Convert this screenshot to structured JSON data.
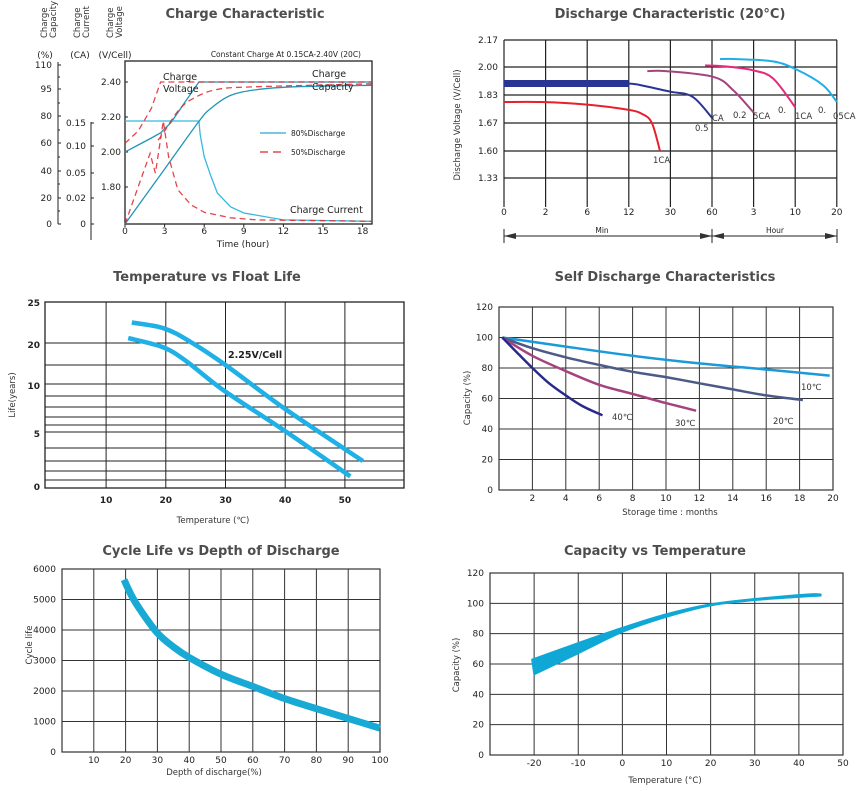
{
  "chart_data": [
    {
      "type": "line",
      "title": "Charge Characteristic",
      "note": "Constant Charge At 0.15CA-2.40V  (20C)",
      "xlabel": "Time (hour)",
      "xlim": [
        0,
        18.7
      ],
      "x_ticks": [
        "0",
        "3",
        "6",
        "9",
        "12",
        "15",
        "18"
      ],
      "axes": {
        "capacity": {
          "header": [
            "Charge",
            "Capacity"
          ],
          "unit": "(%)",
          "ticks": [
            "110",
            "95",
            "80",
            "60",
            "40",
            "20",
            "0"
          ]
        },
        "current": {
          "header": [
            "Charge",
            "Current"
          ],
          "unit": "(CA)",
          "ticks": [
            "0.15",
            "0.10",
            "0.05",
            "0.02",
            "0"
          ]
        },
        "voltage": {
          "header": [
            "Charge",
            "Voltage"
          ],
          "unit": "(V/Cell)",
          "ticks": [
            "2.40",
            "2.20",
            "2.00",
            "1.80"
          ],
          "tick_values": [
            2.4,
            2.2,
            2.0,
            1.8
          ]
        }
      },
      "annotations": {
        "voltage": [
          "Charge",
          "Voltage"
        ],
        "capacity": [
          "Charge",
          "Capacity"
        ],
        "current": "Charge Current"
      },
      "legend": [
        {
          "name": "80%Discharge",
          "style": "solid",
          "color": "#2aa8cf"
        },
        {
          "name": "50%Discharge",
          "style": "dashed",
          "color": "#e2242c"
        }
      ],
      "legend_position": "center-right",
      "series": [
        {
          "group": "80%Discharge",
          "quantity": "voltage",
          "unit": "V/Cell",
          "points": [
            [
              0,
              2.0
            ],
            [
              1,
              2.04
            ],
            [
              2,
              2.08
            ],
            [
              2.7,
              2.11
            ],
            [
              3.5,
              2.17
            ],
            [
              4.5,
              2.28
            ],
            [
              5.6,
              2.4
            ],
            [
              18.7,
              2.4
            ]
          ]
        },
        {
          "group": "80%Discharge",
          "quantity": "current",
          "unit": "CA",
          "points": [
            [
              0,
              0.15
            ],
            [
              5.6,
              0.15
            ],
            [
              5.7,
              0.13
            ],
            [
              6,
              0.098
            ],
            [
              6.5,
              0.07
            ],
            [
              7,
              0.045
            ],
            [
              8,
              0.025
            ],
            [
              9,
              0.016
            ],
            [
              12,
              0.006
            ],
            [
              18.7,
              0.004
            ]
          ]
        },
        {
          "group": "80%Discharge",
          "quantity": "capacity",
          "unit": "%",
          "points": [
            [
              0,
              0
            ],
            [
              3,
              38
            ],
            [
              5.6,
              71
            ],
            [
              6.5,
              80
            ],
            [
              8,
              89
            ],
            [
              10,
              93
            ],
            [
              13,
              95
            ],
            [
              18.7,
              96
            ]
          ]
        },
        {
          "group": "50%Discharge",
          "quantity": "voltage",
          "unit": "V/Cell",
          "points": [
            [
              0,
              2.05
            ],
            [
              1,
              2.12
            ],
            [
              2,
              2.25
            ],
            [
              2.7,
              2.4
            ],
            [
              18.7,
              2.4
            ]
          ]
        },
        {
          "group": "50%Discharge",
          "quantity": "current",
          "unit": "CA",
          "points": [
            [
              0,
              0
            ],
            [
              1.9,
              0.103
            ],
            [
              2.3,
              0.074
            ],
            [
              2.9,
              0.15
            ],
            [
              3.3,
              0.098
            ],
            [
              4,
              0.05
            ],
            [
              5,
              0.028
            ],
            [
              6,
              0.017
            ],
            [
              8,
              0.009
            ],
            [
              10,
              0.006
            ],
            [
              18.7,
              0.004
            ]
          ]
        },
        {
          "group": "50%Discharge",
          "quantity": "capacity",
          "unit": "%",
          "points": [
            [
              2.5,
              58
            ],
            [
              2.9,
              63
            ],
            [
              4,
              78
            ],
            [
              5,
              86
            ],
            [
              6.9,
              93
            ],
            [
              10,
              95
            ],
            [
              18.7,
              97
            ]
          ]
        }
      ]
    },
    {
      "type": "line",
      "title": "Discharge Characteristic (20°C)",
      "ylabel": "Discharge Voltage (V/Cell)",
      "x_ticks": [
        "0",
        "2",
        "6",
        "12",
        "30",
        "60",
        "3",
        "10",
        "20"
      ],
      "x_tick_minutes": [
        0,
        2,
        6,
        12,
        30,
        60,
        180,
        600,
        1200
      ],
      "y_ticks": [
        "2.17",
        "2.00",
        "1.83",
        "1.67",
        "1.60",
        "1.33"
      ],
      "y_tick_values": [
        2.17,
        2.0,
        1.83,
        1.67,
        1.6,
        1.33
      ],
      "x_units": [
        "Min",
        "Hour"
      ],
      "grid": true,
      "series": [
        {
          "color": "#e8202a",
          "points": [
            [
              0,
              1.79
            ],
            [
              1.8,
              1.79
            ],
            [
              6,
              1.775
            ],
            [
              12,
              1.745
            ],
            [
              18,
              1.72
            ],
            [
              22,
              1.67
            ],
            [
              25.5,
              1.6
            ]
          ]
        },
        {
          "color": "#283593",
          "thick_until": 12,
          "points": [
            [
              0,
              1.9
            ],
            [
              12,
              1.9
            ],
            [
              17,
              1.89
            ],
            [
              30,
              1.85
            ],
            [
              46,
              1.82
            ],
            [
              60,
              1.7
            ]
          ]
        },
        {
          "color": "#a4447f",
          "points": [
            [
              20,
              1.975
            ],
            [
              28,
              1.975
            ],
            [
              64,
              1.94
            ],
            [
              121,
              1.86
            ],
            [
              180,
              1.73
            ]
          ]
        },
        {
          "color": "#e8287c",
          "points": [
            [
              55,
              2.01
            ],
            [
              92,
              2.005
            ],
            [
              178,
              1.98
            ],
            [
              377,
              1.93
            ],
            [
              600,
              1.76
            ]
          ]
        },
        {
          "color": "#1eaee8",
          "points": [
            [
              83,
              2.05
            ],
            [
              131,
              2.05
            ],
            [
              377,
              2.035
            ],
            [
              618,
              1.985
            ],
            [
              1000,
              1.89
            ],
            [
              1200,
              1.79
            ]
          ]
        }
      ],
      "annotations": [
        "1CA",
        "0.5",
        "CA",
        "0.2",
        "5CA",
        "0.",
        "1CA",
        "0.",
        "05CA"
      ]
    },
    {
      "type": "line",
      "title": "Temperature vs Float Life",
      "xlabel": "Temperature (℃)",
      "ylabel": "Life(years)",
      "xlim": [
        0,
        60
      ],
      "x_ticks": [
        "10",
        "20",
        "30",
        "40",
        "50"
      ],
      "y_ticks": [
        "25",
        "20",
        "10",
        "5",
        "0"
      ],
      "grid": true,
      "annotation": "2.25V/Cell",
      "color": "#1fb0e6",
      "series": [
        {
          "points": [
            [
              14.3,
              22.5
            ],
            [
              19.6,
              21.8
            ],
            [
              24,
              20.2
            ],
            [
              30,
              15
            ],
            [
              40,
              7.8
            ],
            [
              53,
              3
            ]
          ]
        },
        {
          "points": [
            [
              13.7,
              20.6
            ],
            [
              19.6,
              19
            ],
            [
              23.5,
              15.8
            ],
            [
              29.6,
              9.5
            ],
            [
              39.7,
              5.3
            ],
            [
              50.9,
              1.4
            ]
          ]
        }
      ]
    },
    {
      "type": "line",
      "title": "Self Discharge Characteristics",
      "xlabel": "Storage time : months",
      "ylabel": "Capacity (%)",
      "xlim": [
        0,
        20
      ],
      "ylim": [
        0,
        120
      ],
      "x_ticks": [
        "2",
        "4",
        "6",
        "8",
        "10",
        "12",
        "14",
        "16",
        "18",
        "20"
      ],
      "y_ticks": [
        "0",
        "20",
        "40",
        "60",
        "80",
        "100",
        "120"
      ],
      "grid": true,
      "series": [
        {
          "name": "10℃",
          "color": "#1a9ad8",
          "points": [
            [
              0.2,
              100
            ],
            [
              4,
              94
            ],
            [
              8,
              88
            ],
            [
              12,
              83
            ],
            [
              16,
              79
            ],
            [
              19.8,
              75
            ]
          ]
        },
        {
          "name": "20℃",
          "color": "#4c5a88",
          "points": [
            [
              0.2,
              100
            ],
            [
              2,
              93
            ],
            [
              4,
              87
            ],
            [
              6,
              82
            ],
            [
              8,
              77.5
            ],
            [
              10,
              74
            ],
            [
              12,
              70
            ],
            [
              14,
              66
            ],
            [
              16,
              62
            ],
            [
              18.2,
              59
            ]
          ]
        },
        {
          "name": "30℃",
          "color": "#a4447f",
          "points": [
            [
              0.2,
              100
            ],
            [
              2,
              88
            ],
            [
              4,
              78
            ],
            [
              6,
              69
            ],
            [
              8,
              63
            ],
            [
              10,
              57
            ],
            [
              11.8,
              52
            ]
          ]
        },
        {
          "name": "40℃",
          "color": "#2a2a8a",
          "points": [
            [
              0.2,
              100
            ],
            [
              1,
              91
            ],
            [
              2,
              80
            ],
            [
              3,
              70
            ],
            [
              4,
              62
            ],
            [
              5,
              55
            ],
            [
              6.2,
              49
            ]
          ]
        }
      ]
    },
    {
      "type": "line",
      "title": "Cycle Life vs Depth of Discharge",
      "xlabel": "Depth of discharge(%)",
      "ylabel": "Cycle life",
      "xlim": [
        0,
        100
      ],
      "ylim": [
        0,
        6000
      ],
      "x_ticks": [
        "10",
        "20",
        "30",
        "40",
        "50",
        "60",
        "70",
        "80",
        "90",
        "100"
      ],
      "y_ticks": [
        "0",
        "1000",
        "2000",
        "3000",
        "4000",
        "5000",
        "6000"
      ],
      "grid": true,
      "color": "#18aad5",
      "series": [
        {
          "points": [
            [
              19.5,
              5650
            ],
            [
              22,
              5100
            ],
            [
              25,
              4600
            ],
            [
              30,
              3900
            ],
            [
              35,
              3450
            ],
            [
              40,
              3100
            ],
            [
              50,
              2550
            ],
            [
              60,
              2150
            ],
            [
              70,
              1750
            ],
            [
              80,
              1420
            ],
            [
              90,
              1100
            ],
            [
              100,
              780
            ]
          ]
        }
      ]
    },
    {
      "type": "area",
      "title": "Capacity vs Temperature",
      "xlabel": "Temperature (°C)",
      "ylabel": "Capacity (%)",
      "xlim": [
        -30,
        50
      ],
      "ylim": [
        0,
        120
      ],
      "x_ticks": [
        "-20",
        "-10",
        "0",
        "10",
        "20",
        "30",
        "40",
        "50"
      ],
      "y_ticks": [
        "0",
        "20",
        "40",
        "60",
        "80",
        "100",
        "120"
      ],
      "grid": true,
      "color": "#0fa8d6",
      "band": {
        "upper": [
          [
            -20.5,
            63
          ],
          [
            -10,
            74
          ],
          [
            0,
            84
          ],
          [
            10,
            93
          ],
          [
            20,
            99.5
          ],
          [
            30,
            103
          ],
          [
            42,
            106
          ],
          [
            45,
            106
          ]
        ],
        "lower": [
          [
            -20,
            53
          ],
          [
            -10,
            67
          ],
          [
            0,
            81
          ],
          [
            10,
            91
          ],
          [
            20,
            98.5
          ],
          [
            30,
            102
          ],
          [
            42,
            104.5
          ],
          [
            45,
            105
          ]
        ]
      }
    }
  ]
}
